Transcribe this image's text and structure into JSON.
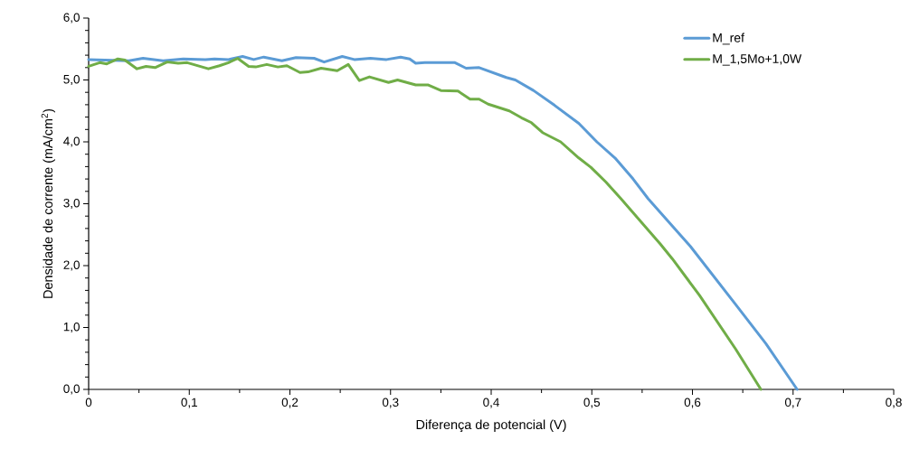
{
  "chart_data": {
    "type": "line",
    "xlabel": "Diferença de potencial (V)",
    "ylabel": "Densidade de corrente (mA/cm$^{2}$)",
    "xlim": [
      0,
      0.8
    ],
    "xticks": [
      0,
      {
        "value": 0.1,
        "label": "0,1"
      },
      {
        "value": 0.2,
        "label": "0,2"
      },
      {
        "value": 0.3,
        "label": "0,3"
      },
      {
        "value": 0.4,
        "label": "0,4"
      },
      {
        "value": 0.5,
        "label": "0,5"
      },
      {
        "value": 0.6,
        "label": "0,6"
      },
      {
        "value": 0.7,
        "label": "0,7"
      },
      {
        "value": 0.8,
        "label": "0,8"
      }
    ],
    "ylim": [
      0,
      6
    ],
    "yticks": [
      {
        "value": 0,
        "label": "0,0"
      },
      {
        "value": 1,
        "label": "1,0"
      },
      {
        "value": 2,
        "label": "2,0"
      },
      {
        "value": 3,
        "label": "3,0"
      },
      {
        "value": 4,
        "label": "4,0"
      },
      {
        "value": 5,
        "label": "5,0"
      },
      {
        "value": 6,
        "label": "6,0"
      }
    ],
    "grid": false,
    "legend": "top right",
    "marker": "none",
    "line_style": "solid",
    "series": [
      {
        "name": "M_ref",
        "color": "#5b9bd5",
        "x": [
          0,
          0.04,
          0.054,
          0.074,
          0.094,
          0.116,
          0.125,
          0.139,
          0.153,
          0.164,
          0.174,
          0.192,
          0.206,
          0.224,
          0.234,
          0.252,
          0.264,
          0.28,
          0.296,
          0.31,
          0.319,
          0.325,
          0.334,
          0.364,
          0.375,
          0.388,
          0.415,
          0.424,
          0.442,
          0.463,
          0.487,
          0.505,
          0.523,
          0.541,
          0.556,
          0.598,
          0.643,
          0.673,
          0.704
        ],
        "values": [
          5.33,
          5.31,
          5.35,
          5.31,
          5.34,
          5.33,
          5.34,
          5.33,
          5.38,
          5.33,
          5.37,
          5.31,
          5.36,
          5.35,
          5.29,
          5.38,
          5.33,
          5.35,
          5.33,
          5.37,
          5.34,
          5.27,
          5.28,
          5.28,
          5.19,
          5.2,
          5.04,
          5.0,
          4.83,
          4.59,
          4.3,
          4.0,
          3.74,
          3.4,
          3.08,
          2.31,
          1.37,
          0.74,
          0
        ]
      },
      {
        "name": "M_1,5Mo+1,0W",
        "color": "#70ad47",
        "x": [
          0,
          0.011,
          0.018,
          0.029,
          0.036,
          0.048,
          0.057,
          0.066,
          0.078,
          0.089,
          0.098,
          0.119,
          0.13,
          0.139,
          0.148,
          0.159,
          0.166,
          0.177,
          0.188,
          0.197,
          0.21,
          0.218,
          0.231,
          0.247,
          0.258,
          0.269,
          0.279,
          0.298,
          0.307,
          0.325,
          0.337,
          0.35,
          0.367,
          0.379,
          0.388,
          0.397,
          0.418,
          0.43,
          0.44,
          0.451,
          0.469,
          0.487,
          0.499,
          0.514,
          0.529,
          0.568,
          0.58,
          0.607,
          0.643,
          0.668
        ],
        "values": [
          5.22,
          5.28,
          5.26,
          5.34,
          5.32,
          5.18,
          5.22,
          5.2,
          5.29,
          5.27,
          5.28,
          5.18,
          5.23,
          5.28,
          5.35,
          5.22,
          5.21,
          5.25,
          5.21,
          5.23,
          5.12,
          5.13,
          5.19,
          5.15,
          5.25,
          4.99,
          5.05,
          4.96,
          5.0,
          4.92,
          4.92,
          4.83,
          4.82,
          4.69,
          4.69,
          4.61,
          4.5,
          4.39,
          4.31,
          4.15,
          4.0,
          3.74,
          3.59,
          3.35,
          3.08,
          2.35,
          2.11,
          1.52,
          0.65,
          0
        ]
      }
    ]
  }
}
